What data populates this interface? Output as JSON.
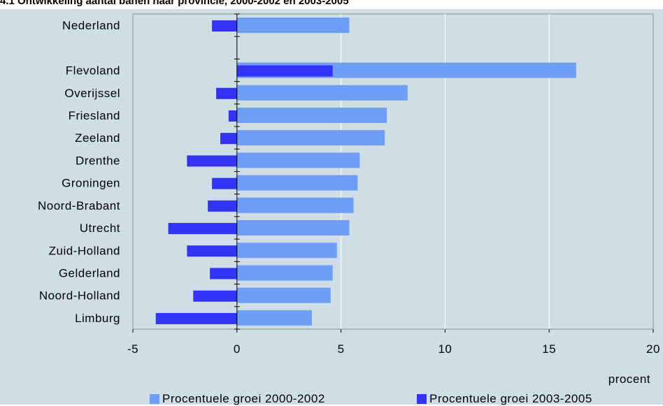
{
  "title": "4.1 Ontwikkeling aantal banen naar provincie, 2000-2002 en 2003-2005",
  "chart_data": {
    "type": "bar",
    "orientation": "horizontal",
    "categories": [
      "Nederland",
      "",
      "Flevoland",
      "Overijssel",
      "Friesland",
      "Zeeland",
      "Drenthe",
      "Groningen",
      "Noord-Brabant",
      "Utrecht",
      "Zuid-Holland",
      "Gelderland",
      "Noord-Holland",
      "Limburg"
    ],
    "series": [
      {
        "name": "Procentuele groei 2000-2002",
        "color": "#6f9ef7",
        "values": [
          5.4,
          null,
          16.3,
          8.2,
          7.2,
          7.1,
          5.9,
          5.8,
          5.6,
          5.4,
          4.8,
          4.6,
          4.5,
          3.6
        ]
      },
      {
        "name": "Procentuele groei 2003-2005",
        "color": "#3333f5",
        "values": [
          -1.2,
          null,
          4.6,
          -1.0,
          -0.4,
          -0.8,
          -2.4,
          -1.2,
          -1.4,
          -3.3,
          -2.4,
          -1.3,
          -2.1,
          -3.9
        ]
      }
    ],
    "x_ticks": [
      "-5",
      "0",
      "5",
      "10",
      "15",
      "20"
    ],
    "xlim": [
      -5,
      20
    ],
    "xlabel": "procent",
    "grid": "vertical",
    "legend_position": "bottom"
  }
}
